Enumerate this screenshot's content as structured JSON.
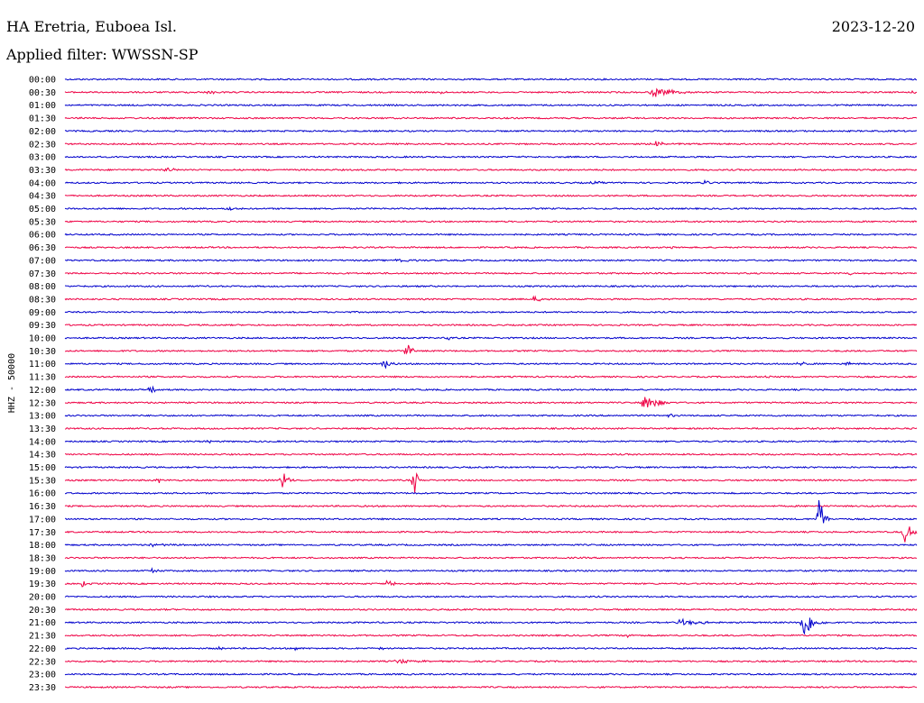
{
  "header": {
    "station": "HA Eretria, Euboea Isl.",
    "date": "2023-12-20",
    "filter": "Applied filter: WWSSN-SP"
  },
  "chart_data": {
    "type": "line",
    "title": "HA Eretria, Euboea Isl.",
    "ylabel": "HHZ - 50000",
    "xlabel": "",
    "row_labels": [
      "00:00",
      "00:30",
      "01:00",
      "01:30",
      "02:00",
      "02:30",
      "03:00",
      "03:30",
      "04:00",
      "04:30",
      "05:00",
      "05:30",
      "06:00",
      "06:30",
      "07:00",
      "07:30",
      "08:00",
      "08:30",
      "09:00",
      "09:30",
      "10:00",
      "10:30",
      "11:00",
      "11:30",
      "12:00",
      "12:30",
      "13:00",
      "13:30",
      "14:00",
      "14:30",
      "15:00",
      "15:30",
      "16:00",
      "16:30",
      "17:00",
      "17:30",
      "18:00",
      "18:30",
      "19:00",
      "19:30",
      "20:00",
      "20:30",
      "21:00",
      "21:30",
      "22:00",
      "22:30",
      "23:00",
      "23:30"
    ],
    "row_colors": [
      "#0000cc",
      "#ee0044"
    ],
    "grid": false,
    "events": [
      {
        "row": "00:30",
        "t": 0.17,
        "amp": 4,
        "dur": 0.012
      },
      {
        "row": "00:30",
        "t": 0.44,
        "amp": 3,
        "dur": 0.01
      },
      {
        "row": "00:30",
        "t": 0.69,
        "amp": 6,
        "dur": 0.06
      },
      {
        "row": "00:30",
        "t": 0.997,
        "amp": 3,
        "dur": 0.004
      },
      {
        "row": "01:30",
        "t": 0.02,
        "amp": 2,
        "dur": 0.008
      },
      {
        "row": "02:30",
        "t": 0.69,
        "amp": 4,
        "dur": 0.04
      },
      {
        "row": "03:30",
        "t": 0.12,
        "amp": 4,
        "dur": 0.015
      },
      {
        "row": "04:00",
        "t": 0.62,
        "amp": 2,
        "dur": 0.02
      },
      {
        "row": "04:00",
        "t": 0.75,
        "amp": 2,
        "dur": 0.04
      },
      {
        "row": "05:00",
        "t": 0.19,
        "amp": 3,
        "dur": 0.02
      },
      {
        "row": "06:30",
        "t": 0.71,
        "amp": 2,
        "dur": 0.02
      },
      {
        "row": "07:00",
        "t": 0.39,
        "amp": 3,
        "dur": 0.03
      },
      {
        "row": "07:30",
        "t": 0.92,
        "amp": 2,
        "dur": 0.02
      },
      {
        "row": "08:30",
        "t": 0.55,
        "amp": 3,
        "dur": 0.03
      },
      {
        "row": "10:00",
        "t": 0.45,
        "amp": 3,
        "dur": 0.01
      },
      {
        "row": "10:30",
        "t": 0.4,
        "amp": 14,
        "dur": 0.015
      },
      {
        "row": "11:00",
        "t": 0.375,
        "amp": 9,
        "dur": 0.015
      },
      {
        "row": "11:00",
        "t": 0.86,
        "amp": 6,
        "dur": 0.015
      },
      {
        "row": "11:00",
        "t": 0.92,
        "amp": 5,
        "dur": 0.003
      },
      {
        "row": "11:30",
        "t": 0.82,
        "amp": 4,
        "dur": 0.015
      },
      {
        "row": "12:00",
        "t": 0.1,
        "amp": 4,
        "dur": 0.02
      },
      {
        "row": "12:30",
        "t": 0.68,
        "amp": 16,
        "dur": 0.03
      },
      {
        "row": "13:00",
        "t": 0.71,
        "amp": 3,
        "dur": 0.01
      },
      {
        "row": "14:00",
        "t": 0.17,
        "amp": 3,
        "dur": 0.01
      },
      {
        "row": "15:30",
        "t": 0.11,
        "amp": 4,
        "dur": 0.005
      },
      {
        "row": "15:30",
        "t": 0.255,
        "amp": 12,
        "dur": 0.015
      },
      {
        "row": "15:30",
        "t": 0.41,
        "amp": 20,
        "dur": 0.008
      },
      {
        "row": "17:00",
        "t": 0.885,
        "amp": 40,
        "dur": 0.012
      },
      {
        "row": "17:30",
        "t": 0.985,
        "amp": 13,
        "dur": 0.025
      },
      {
        "row": "18:00",
        "t": 0.1,
        "amp": 2,
        "dur": 0.03
      },
      {
        "row": "19:00",
        "t": 0.105,
        "amp": 6,
        "dur": 0.01
      },
      {
        "row": "19:30",
        "t": 0.02,
        "amp": 5,
        "dur": 0.012
      },
      {
        "row": "19:30",
        "t": 0.38,
        "amp": 8,
        "dur": 0.012
      },
      {
        "row": "21:00",
        "t": 0.72,
        "amp": 4,
        "dur": 0.06
      },
      {
        "row": "21:00",
        "t": 0.865,
        "amp": 22,
        "dur": 0.03
      },
      {
        "row": "21:30",
        "t": 0.66,
        "amp": 3,
        "dur": 0.01
      },
      {
        "row": "22:00",
        "t": 0.18,
        "amp": 3,
        "dur": 0.008
      },
      {
        "row": "22:00",
        "t": 0.27,
        "amp": 3,
        "dur": 0.008
      },
      {
        "row": "22:00",
        "t": 0.37,
        "amp": 3,
        "dur": 0.008
      },
      {
        "row": "22:30",
        "t": 0.39,
        "amp": 3,
        "dur": 0.04
      }
    ]
  }
}
